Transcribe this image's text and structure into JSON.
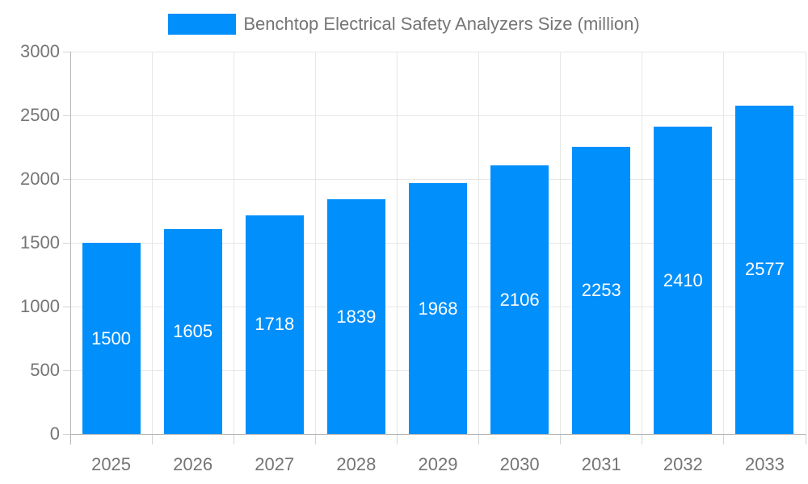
{
  "chart_data": {
    "type": "bar",
    "title": "Benchtop Electrical Safety Analyzers Size (million)",
    "categories": [
      "2025",
      "2026",
      "2027",
      "2028",
      "2029",
      "2030",
      "2031",
      "2032",
      "2033"
    ],
    "values": [
      1500,
      1605,
      1718,
      1839,
      1968,
      2106,
      2253,
      2410,
      2577
    ],
    "series": [
      {
        "name": "Benchtop Electrical Safety Analyzers Size (million)",
        "values": [
          1500,
          1605,
          1718,
          1839,
          1968,
          2106,
          2253,
          2410,
          2577
        ]
      }
    ],
    "xlabel": "",
    "ylabel": "",
    "ylim": [
      0,
      3000
    ],
    "ytick_step": 500,
    "ytick_labels": [
      "0",
      "500",
      "1000",
      "1500",
      "2000",
      "2500",
      "3000"
    ],
    "grid": true,
    "legend_position": "top",
    "data_labels": "inside-center",
    "colors": {
      "bar": "#008FFB",
      "data_label": "#FFFFFF",
      "axis_text": "#757575",
      "gridline": "#E7E7E7",
      "axis_line": "#B4B4B4",
      "tick": "#D4D4D4"
    }
  }
}
